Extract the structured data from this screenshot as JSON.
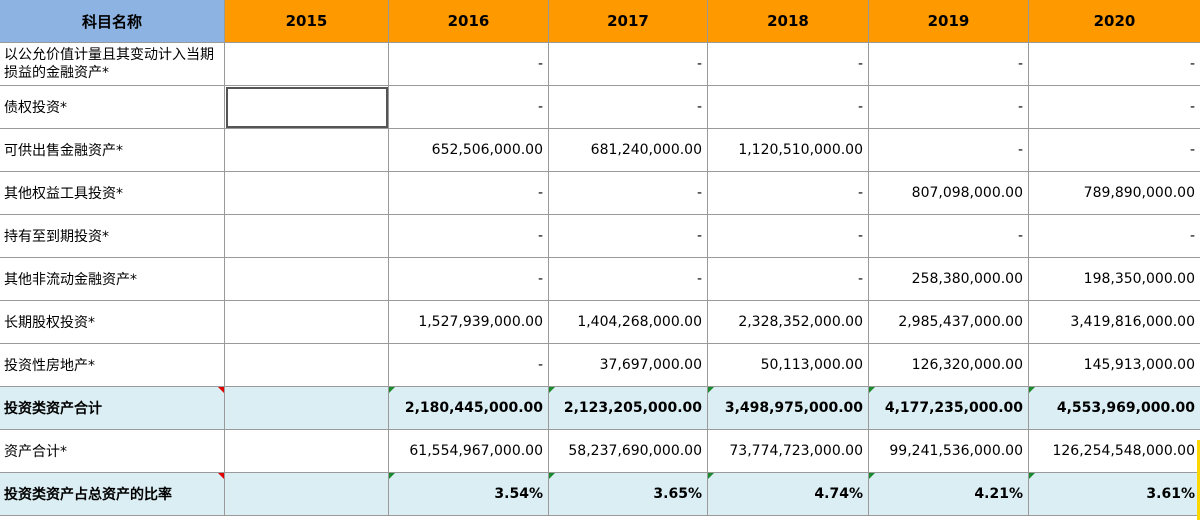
{
  "header": {
    "name_col": "科目名称",
    "years": [
      "2015",
      "2016",
      "2017",
      "2018",
      "2019",
      "2020"
    ]
  },
  "rows": [
    {
      "label": "以公允价值计量且其变动计入当期损益的金融资产*",
      "values": [
        "",
        "-",
        "-",
        "-",
        "-",
        "-"
      ]
    },
    {
      "label": "债权投资*",
      "values": [
        "",
        "-",
        "-",
        "-",
        "-",
        "-"
      ]
    },
    {
      "label": "可供出售金融资产*",
      "values": [
        "",
        "652,506,000.00",
        "681,240,000.00",
        "1,120,510,000.00",
        "-",
        "-"
      ]
    },
    {
      "label": "其他权益工具投资*",
      "values": [
        "",
        "-",
        "-",
        "-",
        "807,098,000.00",
        "789,890,000.00"
      ]
    },
    {
      "label": "持有至到期投资*",
      "values": [
        "",
        "-",
        "-",
        "-",
        "-",
        "-"
      ]
    },
    {
      "label": "其他非流动金融资产*",
      "values": [
        "",
        "-",
        "-",
        "-",
        "258,380,000.00",
        "198,350,000.00"
      ]
    },
    {
      "label": "长期股权投资*",
      "values": [
        "",
        "1,527,939,000.00",
        "1,404,268,000.00",
        "2,328,352,000.00",
        "2,985,437,000.00",
        "3,419,816,000.00"
      ]
    },
    {
      "label": "投资性房地产*",
      "values": [
        "",
        "-",
        "37,697,000.00",
        "50,113,000.00",
        "126,320,000.00",
        "145,913,000.00"
      ]
    },
    {
      "label": "投资类资产合计",
      "values": [
        "",
        "2,180,445,000.00",
        "2,123,205,000.00",
        "3,498,975,000.00",
        "4,177,235,000.00",
        "4,553,969,000.00"
      ],
      "highlight": true
    },
    {
      "label": "资产合计*",
      "values": [
        "",
        "61,554,967,000.00",
        "58,237,690,000.00",
        "73,774,723,000.00",
        "99,241,536,000.00",
        "126,254,548,000.00"
      ]
    },
    {
      "label": "投资类资产占总资产的比率",
      "values": [
        "",
        "3.54%",
        "3.65%",
        "4.74%",
        "4.21%",
        "3.61%"
      ],
      "highlight": true
    }
  ],
  "colors": {
    "header_name_bg": "#8db3e2",
    "header_year_bg": "#ff9900",
    "highlight_row_bg": "#daeef3",
    "marker_green": "#1b8a2e",
    "marker_red": "#e00000"
  }
}
